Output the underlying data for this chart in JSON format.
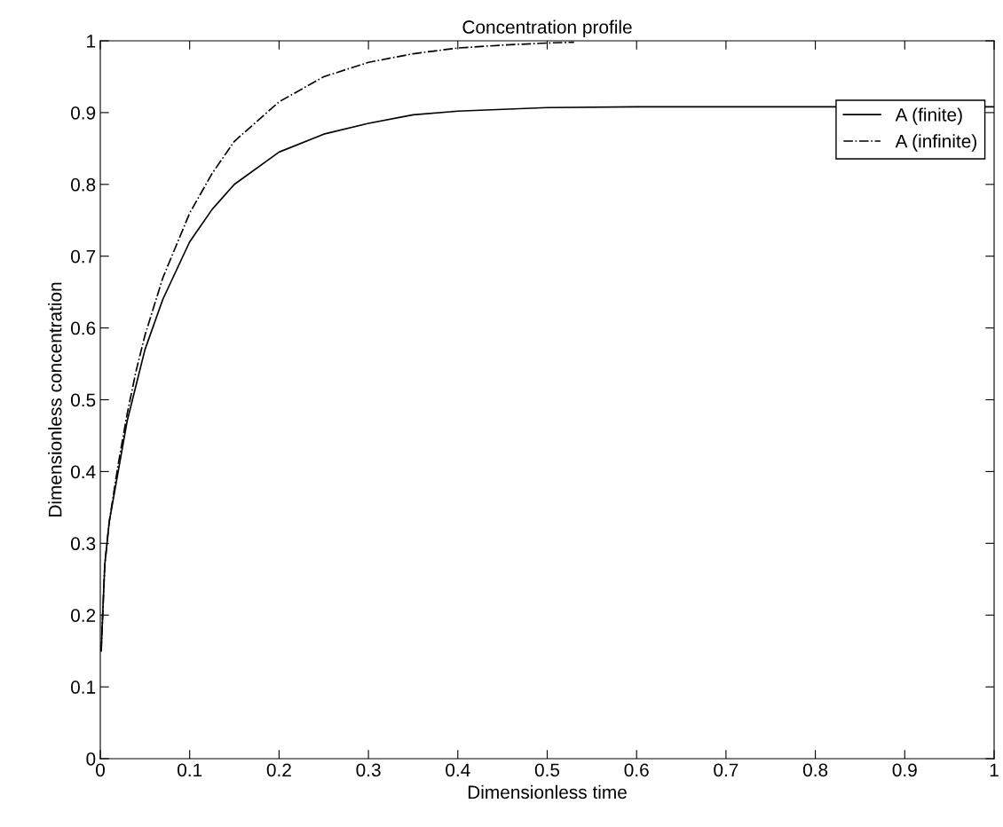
{
  "chart_data": {
    "type": "line",
    "title": "Concentration profile",
    "xlabel": "Dimensionless time",
    "ylabel": "Dimensionless concentration",
    "xlim": [
      0,
      1
    ],
    "ylim": [
      0,
      1
    ],
    "xticks": [
      0,
      0.1,
      0.2,
      0.3,
      0.4,
      0.5,
      0.6,
      0.7,
      0.8,
      0.9,
      1
    ],
    "yticks": [
      0,
      0.1,
      0.2,
      0.3,
      0.4,
      0.5,
      0.6,
      0.7,
      0.8,
      0.9,
      1
    ],
    "grid": false,
    "legend": "top right",
    "marker": "none",
    "series": [
      {
        "name": "A (finite)",
        "color": "#000000",
        "line_style": "solid",
        "x": [
          0.001,
          0.005,
          0.01,
          0.02,
          0.03,
          0.04,
          0.05,
          0.07,
          0.1,
          0.125,
          0.15,
          0.2,
          0.25,
          0.3,
          0.35,
          0.4,
          0.5,
          0.6,
          0.8,
          1.0
        ],
        "values": [
          0.15,
          0.27,
          0.33,
          0.4,
          0.47,
          0.52,
          0.57,
          0.64,
          0.72,
          0.765,
          0.8,
          0.845,
          0.87,
          0.885,
          0.897,
          0.902,
          0.907,
          0.908,
          0.908,
          0.908
        ]
      },
      {
        "name": "A (infinite)",
        "color": "#000000",
        "line_style": "dashdot",
        "x": [
          0.001,
          0.005,
          0.01,
          0.02,
          0.03,
          0.04,
          0.05,
          0.07,
          0.1,
          0.125,
          0.15,
          0.2,
          0.25,
          0.3,
          0.35,
          0.4,
          0.45,
          0.5,
          0.53
        ],
        "values": [
          0.15,
          0.27,
          0.33,
          0.41,
          0.48,
          0.54,
          0.59,
          0.67,
          0.76,
          0.815,
          0.86,
          0.915,
          0.95,
          0.97,
          0.982,
          0.99,
          0.994,
          0.997,
          0.998
        ]
      }
    ]
  }
}
